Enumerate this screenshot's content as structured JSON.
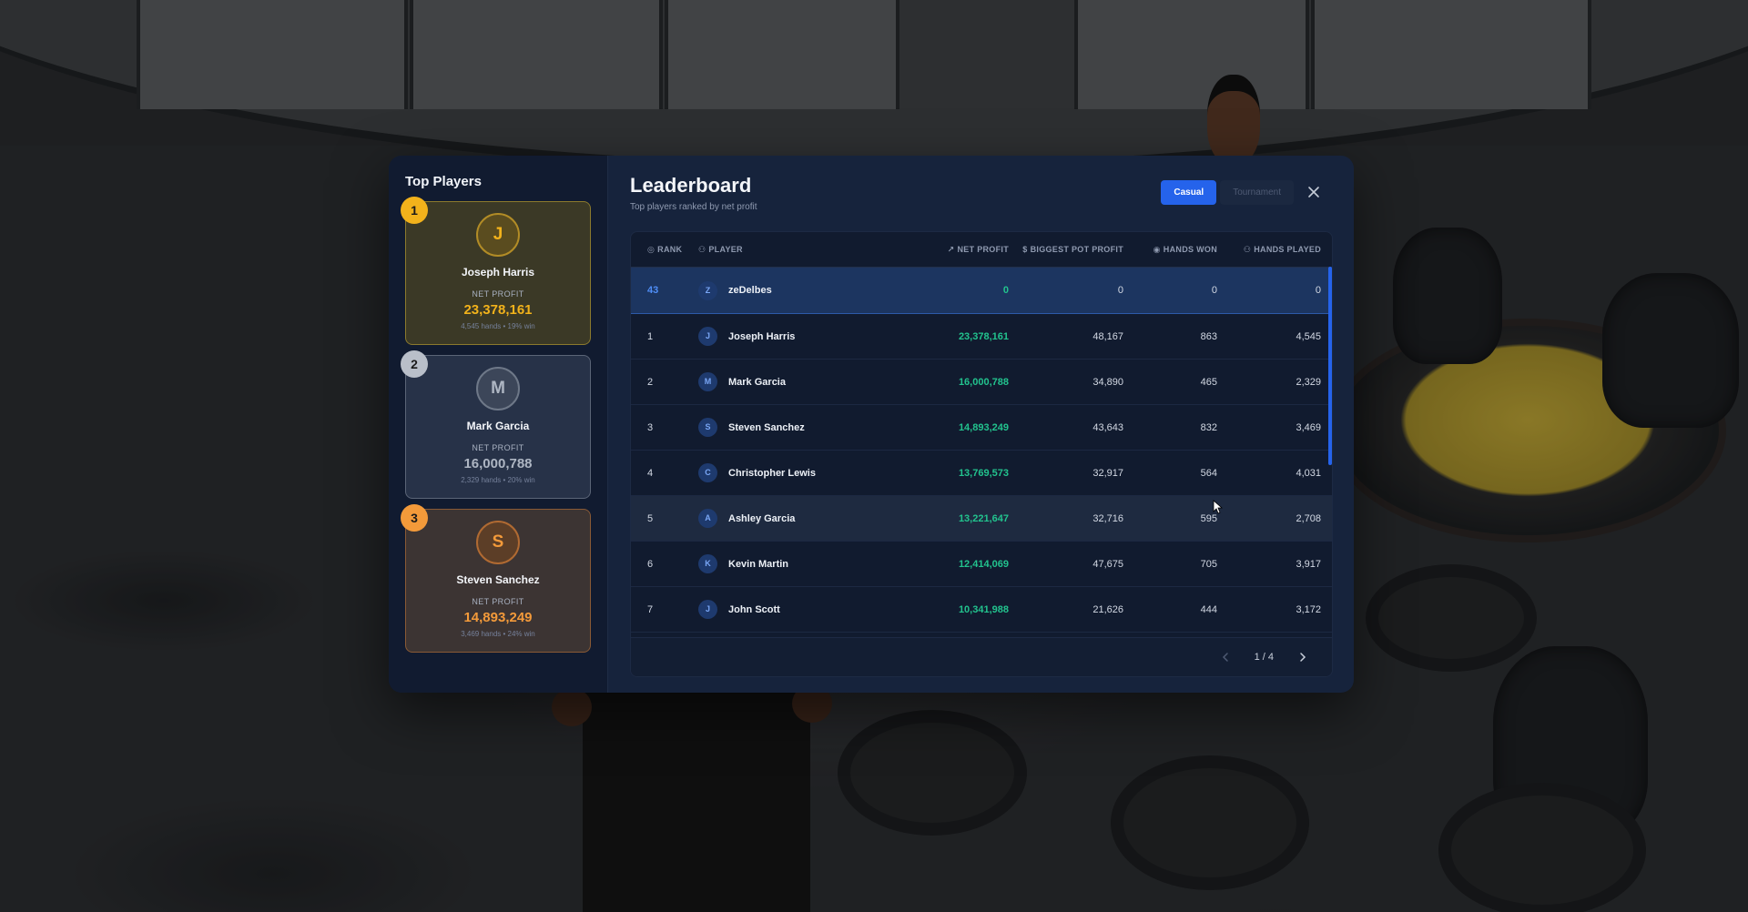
{
  "sidebar": {
    "title": "Top Players",
    "top_players": [
      {
        "rank": "1",
        "initial": "J",
        "name": "Joseph Harris",
        "label": "NET PROFIT",
        "value": "23,378,161",
        "sub": "4,545 hands • 19% win"
      },
      {
        "rank": "2",
        "initial": "M",
        "name": "Mark Garcia",
        "label": "NET PROFIT",
        "value": "16,000,788",
        "sub": "2,329 hands • 20% win"
      },
      {
        "rank": "3",
        "initial": "S",
        "name": "Steven Sanchez",
        "label": "NET PROFIT",
        "value": "14,893,249",
        "sub": "3,469 hands • 24% win"
      }
    ]
  },
  "header": {
    "title": "Leaderboard",
    "subtitle": "Top players ranked by net profit",
    "modes": [
      "Casual",
      "Tournament"
    ]
  },
  "table": {
    "columns": [
      "RANK",
      "PLAYER",
      "NET PROFIT",
      "BIGGEST POT PROFIT",
      "HANDS WON",
      "HANDS PLAYED"
    ],
    "current_user": {
      "rank": "43",
      "initial": "Z",
      "name": "zeDelbes",
      "net_profit": "0",
      "biggest_pot": "0",
      "hands_won": "0",
      "hands_played": "0"
    },
    "rows": [
      {
        "rank": "1",
        "initial": "J",
        "name": "Joseph Harris",
        "net_profit": "23,378,161",
        "biggest_pot": "48,167",
        "hands_won": "863",
        "hands_played": "4,545"
      },
      {
        "rank": "2",
        "initial": "M",
        "name": "Mark Garcia",
        "net_profit": "16,000,788",
        "biggest_pot": "34,890",
        "hands_won": "465",
        "hands_played": "2,329"
      },
      {
        "rank": "3",
        "initial": "S",
        "name": "Steven Sanchez",
        "net_profit": "14,893,249",
        "biggest_pot": "43,643",
        "hands_won": "832",
        "hands_played": "3,469"
      },
      {
        "rank": "4",
        "initial": "C",
        "name": "Christopher Lewis",
        "net_profit": "13,769,573",
        "biggest_pot": "32,917",
        "hands_won": "564",
        "hands_played": "4,031"
      },
      {
        "rank": "5",
        "initial": "A",
        "name": "Ashley Garcia",
        "net_profit": "13,221,647",
        "biggest_pot": "32,716",
        "hands_won": "595",
        "hands_played": "2,708"
      },
      {
        "rank": "6",
        "initial": "K",
        "name": "Kevin Martin",
        "net_profit": "12,414,069",
        "biggest_pot": "47,675",
        "hands_won": "705",
        "hands_played": "3,917"
      },
      {
        "rank": "7",
        "initial": "J",
        "name": "John Scott",
        "net_profit": "10,341,988",
        "biggest_pot": "21,626",
        "hands_won": "444",
        "hands_played": "3,172"
      }
    ]
  },
  "pagination": {
    "label": "1 / 4"
  },
  "colors": {
    "accent": "#2563eb",
    "profit": "#22c38e",
    "gold": "#f2b21b",
    "silver": "#b9bfc9",
    "bronze": "#f39a3a"
  }
}
